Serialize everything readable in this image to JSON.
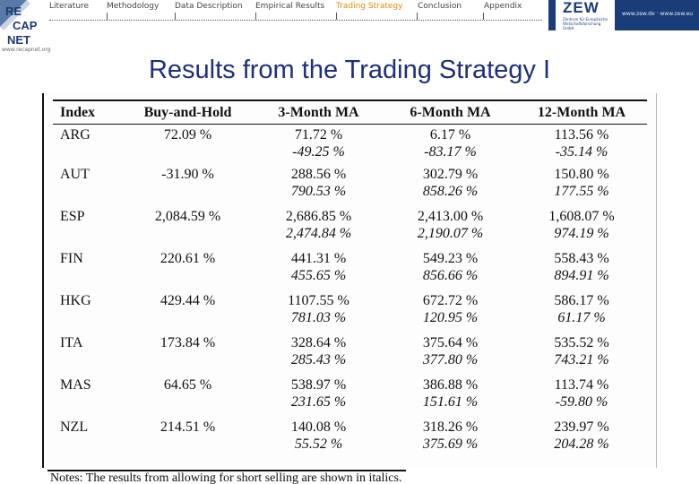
{
  "nav": {
    "items": [
      {
        "label": "Literature",
        "active": false
      },
      {
        "label": "Methodology",
        "active": false
      },
      {
        "label": "Data Description",
        "active": false
      },
      {
        "label": "Empirical Results",
        "active": false
      },
      {
        "label": "Trading Strategy",
        "active": true
      },
      {
        "label": "Conclusion",
        "active": false
      },
      {
        "label": "Appendix",
        "active": false
      }
    ],
    "active_color": "#e08a00"
  },
  "logo": {
    "lines": [
      "RE",
      "CAP",
      "NET"
    ],
    "url": "www.recapnet.org"
  },
  "branding": {
    "zew_text": "ZEW",
    "zew_subtitle": "Zentrum für Europäische Wirtschaftsforschung GmbH",
    "url": "www.zew.de · www.zew.eu",
    "color": "#1a3c78"
  },
  "title": "Results from the Trading Strategy I",
  "table": {
    "headers": [
      "Index",
      "Buy-and-Hold",
      "3-Month MA",
      "6-Month MA",
      "12-Month MA"
    ],
    "rows": [
      {
        "index": "ARG",
        "bh": "72.09 %",
        "m3": "71.72 %",
        "m3s": "-49.25 %",
        "m6": "6.17 %",
        "m6s": "-83.17 %",
        "m12": "113.56 %",
        "m12s": "-35.14 %"
      },
      {
        "index": "AUT",
        "bh": "-31.90 %",
        "m3": "288.56 %",
        "m3s": "790.53 %",
        "m6": "302.79 %",
        "m6s": "858.26 %",
        "m12": "150.80 %",
        "m12s": "177.55 %"
      },
      {
        "index": "ESP",
        "bh": "2,084.59 %",
        "m3": "2,686.85 %",
        "m3s": "2,474.84 %",
        "m6": "2,413.00 %",
        "m6s": "2,190.07 %",
        "m12": "1,608.07 %",
        "m12s": "974.19 %"
      },
      {
        "index": "FIN",
        "bh": "220.61 %",
        "m3": "441.31 %",
        "m3s": "455.65 %",
        "m6": "549.23 %",
        "m6s": "856.66 %",
        "m12": "558.43 %",
        "m12s": "894.91 %"
      },
      {
        "index": "HKG",
        "bh": "429.44 %",
        "m3": "1107.55 %",
        "m3s": "781.03 %",
        "m6": "672.72 %",
        "m6s": "120.95 %",
        "m12": "586.17 %",
        "m12s": "61.17 %"
      },
      {
        "index": "ITA",
        "bh": "173.84 %",
        "m3": "328.64 %",
        "m3s": "285.43 %",
        "m6": "375.64 %",
        "m6s": "377.80 %",
        "m12": "535.52 %",
        "m12s": "743.21 %"
      },
      {
        "index": "MAS",
        "bh": "64.65 %",
        "m3": "538.97 %",
        "m3s": "231.65 %",
        "m6": "386.88 %",
        "m6s": "151.61 %",
        "m12": "113.74 %",
        "m12s": "-59.80 %"
      },
      {
        "index": "NZL",
        "bh": "214.51 %",
        "m3": "140.08 %",
        "m3s": "55.52 %",
        "m6": "318.26 %",
        "m6s": "375.69 %",
        "m12": "239.97 %",
        "m12s": "204.28 %"
      }
    ]
  },
  "notes": "Notes: The results from allowing for short selling are shown in italics."
}
